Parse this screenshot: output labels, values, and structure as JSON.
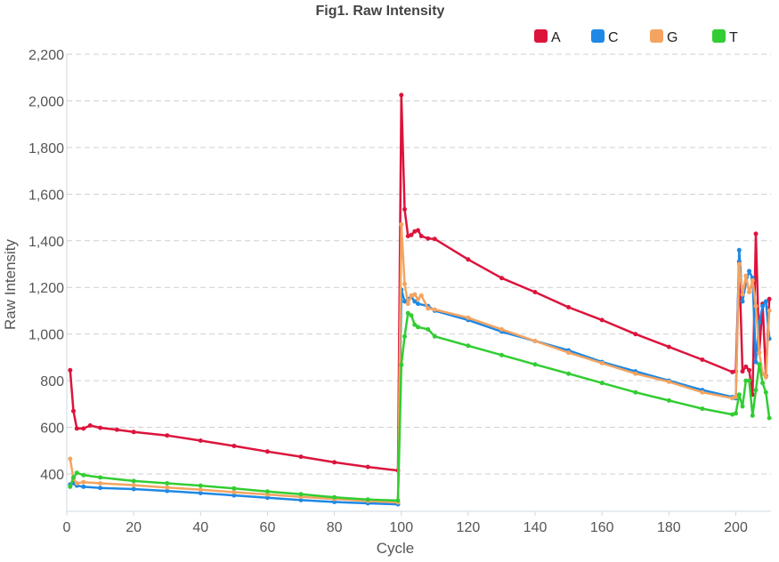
{
  "chart_data": {
    "type": "line",
    "title": "Fig1. Raw Intensity",
    "xlabel": "Cycle",
    "ylabel": "Raw Intensity",
    "xlim": [
      0,
      210
    ],
    "ylim": [
      250,
      2200
    ],
    "xticks": [
      0,
      20,
      40,
      60,
      80,
      100,
      120,
      140,
      160,
      180,
      200
    ],
    "yticks": [
      400,
      600,
      800,
      1000,
      1200,
      1400,
      1600,
      1800,
      2000,
      2200
    ],
    "ytick_labels": [
      "400",
      "600",
      "800",
      "1,000",
      "1,200",
      "1,400",
      "1,600",
      "1,800",
      "2,000",
      "2,200"
    ],
    "grid": "horizontal dashed",
    "legend_position": "top-right",
    "series": [
      {
        "name": "A",
        "color": "#dc143c",
        "points": [
          [
            1,
            845
          ],
          [
            2,
            670
          ],
          [
            3,
            595
          ],
          [
            5,
            595
          ],
          [
            7,
            608
          ],
          [
            10,
            598
          ],
          [
            15,
            590
          ],
          [
            20,
            580
          ],
          [
            30,
            565
          ],
          [
            40,
            543
          ],
          [
            50,
            520
          ],
          [
            60,
            496
          ],
          [
            70,
            474
          ],
          [
            80,
            450
          ],
          [
            90,
            430
          ],
          [
            99,
            415
          ],
          [
            100,
            2025
          ],
          [
            101,
            1535
          ],
          [
            102,
            1420
          ],
          [
            103,
            1425
          ],
          [
            104,
            1440
          ],
          [
            105,
            1445
          ],
          [
            106,
            1420
          ],
          [
            108,
            1410
          ],
          [
            110,
            1408
          ],
          [
            120,
            1320
          ],
          [
            130,
            1240
          ],
          [
            140,
            1180
          ],
          [
            150,
            1115
          ],
          [
            160,
            1060
          ],
          [
            170,
            1000
          ],
          [
            180,
            945
          ],
          [
            190,
            890
          ],
          [
            199,
            837
          ],
          [
            200,
            840
          ],
          [
            201,
            1310
          ],
          [
            202,
            840
          ],
          [
            203,
            860
          ],
          [
            204,
            845
          ],
          [
            205,
            740
          ],
          [
            206,
            1430
          ],
          [
            207,
            920
          ],
          [
            208,
            1130
          ],
          [
            209,
            820
          ],
          [
            210,
            1150
          ]
        ]
      },
      {
        "name": "C",
        "color": "#1e88e5",
        "points": [
          [
            1,
            355
          ],
          [
            2,
            360
          ],
          [
            3,
            350
          ],
          [
            5,
            345
          ],
          [
            10,
            340
          ],
          [
            20,
            335
          ],
          [
            30,
            327
          ],
          [
            40,
            318
          ],
          [
            50,
            308
          ],
          [
            60,
            298
          ],
          [
            70,
            288
          ],
          [
            80,
            280
          ],
          [
            90,
            274
          ],
          [
            99,
            270
          ],
          [
            100,
            1190
          ],
          [
            101,
            1140
          ],
          [
            102,
            1150
          ],
          [
            103,
            1160
          ],
          [
            104,
            1140
          ],
          [
            105,
            1130
          ],
          [
            108,
            1120
          ],
          [
            110,
            1100
          ],
          [
            120,
            1060
          ],
          [
            130,
            1010
          ],
          [
            140,
            970
          ],
          [
            150,
            930
          ],
          [
            160,
            880
          ],
          [
            170,
            840
          ],
          [
            180,
            800
          ],
          [
            190,
            760
          ],
          [
            199,
            730
          ],
          [
            200,
            725
          ],
          [
            201,
            1360
          ],
          [
            202,
            1140
          ],
          [
            203,
            1220
          ],
          [
            204,
            1270
          ],
          [
            205,
            1240
          ],
          [
            206,
            880
          ],
          [
            207,
            1050
          ],
          [
            208,
            1120
          ],
          [
            209,
            1140
          ],
          [
            210,
            980
          ]
        ]
      },
      {
        "name": "G",
        "color": "#f4a460",
        "points": [
          [
            1,
            465
          ],
          [
            2,
            380
          ],
          [
            3,
            360
          ],
          [
            5,
            365
          ],
          [
            10,
            360
          ],
          [
            20,
            352
          ],
          [
            30,
            342
          ],
          [
            40,
            333
          ],
          [
            50,
            322
          ],
          [
            60,
            312
          ],
          [
            70,
            302
          ],
          [
            80,
            293
          ],
          [
            90,
            284
          ],
          [
            99,
            278
          ],
          [
            100,
            1470
          ],
          [
            101,
            1215
          ],
          [
            102,
            1130
          ],
          [
            103,
            1165
          ],
          [
            104,
            1170
          ],
          [
            105,
            1150
          ],
          [
            106,
            1165
          ],
          [
            108,
            1110
          ],
          [
            110,
            1105
          ],
          [
            120,
            1070
          ],
          [
            130,
            1020
          ],
          [
            140,
            970
          ],
          [
            150,
            920
          ],
          [
            160,
            875
          ],
          [
            170,
            830
          ],
          [
            180,
            795
          ],
          [
            190,
            750
          ],
          [
            199,
            725
          ],
          [
            200,
            730
          ],
          [
            201,
            1300
          ],
          [
            202,
            1170
          ],
          [
            203,
            1250
          ],
          [
            204,
            1180
          ],
          [
            205,
            1230
          ],
          [
            206,
            1120
          ],
          [
            207,
            920
          ],
          [
            208,
            830
          ],
          [
            209,
            815
          ],
          [
            210,
            1100
          ]
        ]
      },
      {
        "name": "T",
        "color": "#32cd32",
        "points": [
          [
            1,
            345
          ],
          [
            2,
            385
          ],
          [
            3,
            405
          ],
          [
            5,
            395
          ],
          [
            10,
            385
          ],
          [
            20,
            370
          ],
          [
            30,
            360
          ],
          [
            40,
            350
          ],
          [
            50,
            338
          ],
          [
            60,
            325
          ],
          [
            70,
            313
          ],
          [
            80,
            300
          ],
          [
            90,
            290
          ],
          [
            99,
            286
          ],
          [
            100,
            868
          ],
          [
            101,
            990
          ],
          [
            102,
            1090
          ],
          [
            103,
            1080
          ],
          [
            104,
            1040
          ],
          [
            105,
            1030
          ],
          [
            108,
            1020
          ],
          [
            110,
            990
          ],
          [
            120,
            950
          ],
          [
            130,
            910
          ],
          [
            140,
            870
          ],
          [
            150,
            830
          ],
          [
            160,
            790
          ],
          [
            170,
            750
          ],
          [
            180,
            715
          ],
          [
            190,
            680
          ],
          [
            199,
            655
          ],
          [
            200,
            660
          ],
          [
            201,
            740
          ],
          [
            202,
            690
          ],
          [
            203,
            800
          ],
          [
            204,
            800
          ],
          [
            205,
            650
          ],
          [
            206,
            760
          ],
          [
            207,
            870
          ],
          [
            208,
            790
          ],
          [
            209,
            750
          ],
          [
            210,
            640
          ]
        ]
      }
    ]
  }
}
